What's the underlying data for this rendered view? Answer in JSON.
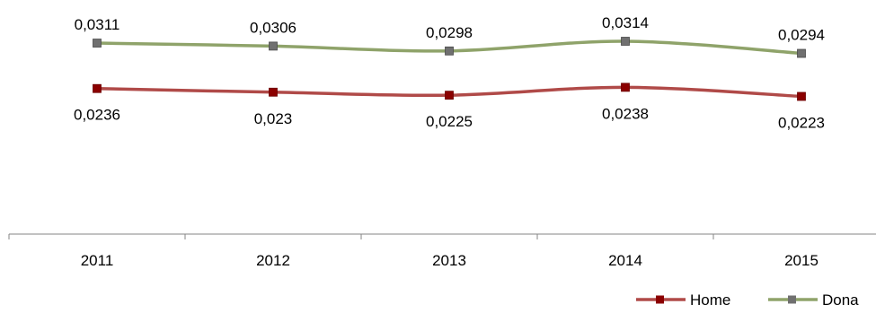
{
  "chart_data": {
    "type": "line",
    "categories": [
      "2011",
      "2012",
      "2013",
      "2014",
      "2015"
    ],
    "series": [
      {
        "name": "Home",
        "values": [
          0.0236,
          0.023,
          0.0225,
          0.0238,
          0.0223
        ],
        "labels": [
          "0,0236",
          "0,023",
          "0,0225",
          "0,0238",
          "0,0223"
        ],
        "color": "#B04A48",
        "marker_color": "#8B0000",
        "label_position": "below"
      },
      {
        "name": "Dona",
        "values": [
          0.0311,
          0.0306,
          0.0298,
          0.0314,
          0.0294
        ],
        "labels": [
          "0,0311",
          "0,0306",
          "0,0298",
          "0,0314",
          "0,0294"
        ],
        "color": "#8FA36A",
        "marker_color": "#707070",
        "label_position": "above"
      }
    ],
    "title": "",
    "xlabel": "",
    "ylabel": "",
    "legend": "bottom-right",
    "grid": false,
    "smooth": true
  }
}
